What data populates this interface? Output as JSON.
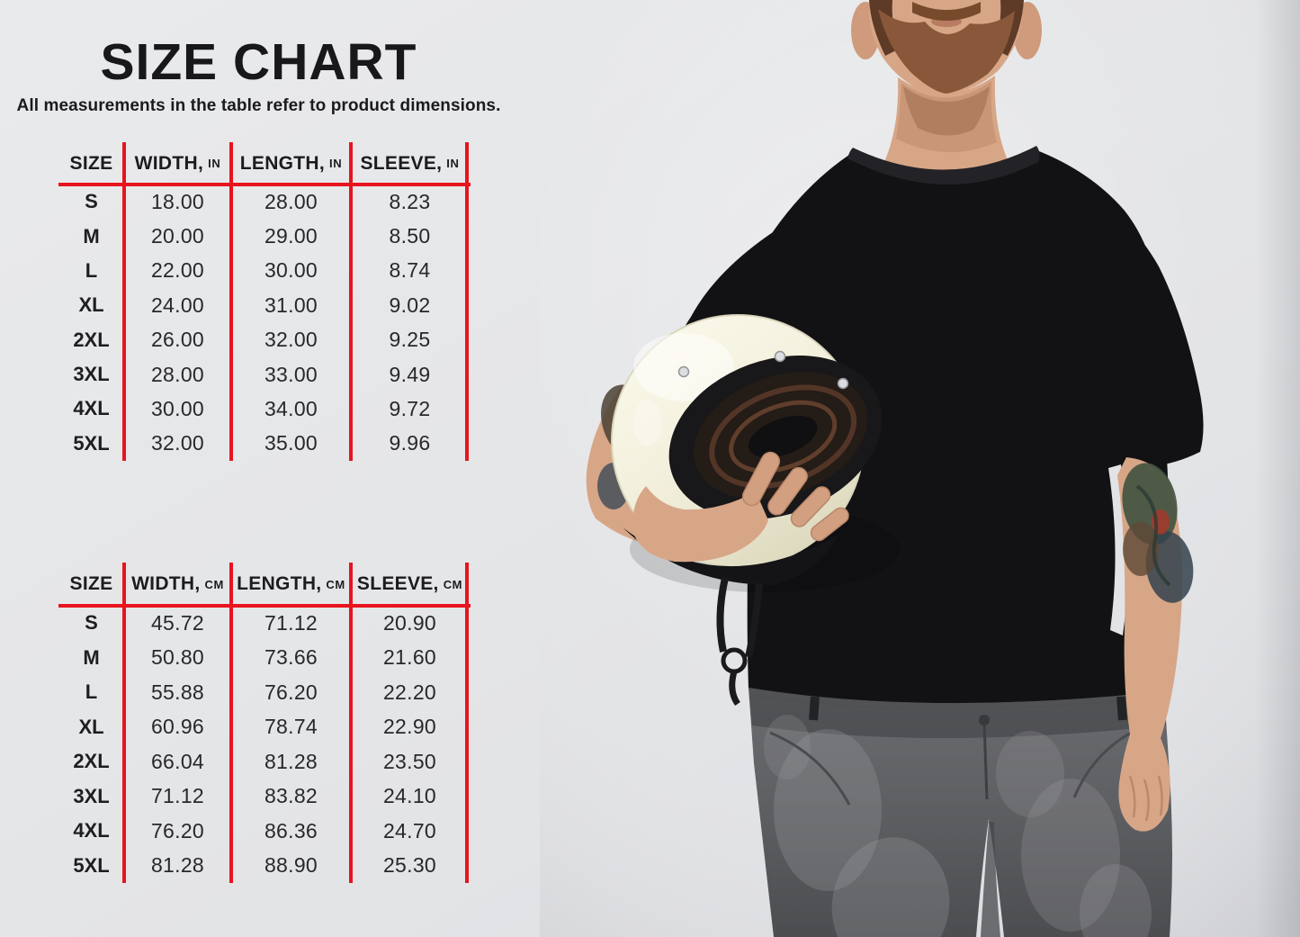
{
  "header": {
    "title": "SIZE CHART",
    "subtitle": "All measurements in the table refer to product dimensions."
  },
  "tables": [
    {
      "name": "inches",
      "columns": [
        {
          "label": "SIZE",
          "unit": ""
        },
        {
          "label": "WIDTH,",
          "unit": "IN"
        },
        {
          "label": "LENGTH,",
          "unit": "IN"
        },
        {
          "label": "SLEEVE,",
          "unit": "IN"
        }
      ],
      "rows": [
        {
          "size": "S",
          "values": [
            "18.00",
            "28.00",
            "8.23"
          ]
        },
        {
          "size": "M",
          "values": [
            "20.00",
            "29.00",
            "8.50"
          ]
        },
        {
          "size": "L",
          "values": [
            "22.00",
            "30.00",
            "8.74"
          ]
        },
        {
          "size": "XL",
          "values": [
            "24.00",
            "31.00",
            "9.02"
          ]
        },
        {
          "size": "2XL",
          "values": [
            "26.00",
            "32.00",
            "9.25"
          ]
        },
        {
          "size": "3XL",
          "values": [
            "28.00",
            "33.00",
            "9.49"
          ]
        },
        {
          "size": "4XL",
          "values": [
            "30.00",
            "34.00",
            "9.72"
          ]
        },
        {
          "size": "5XL",
          "values": [
            "32.00",
            "35.00",
            "9.96"
          ]
        }
      ]
    },
    {
      "name": "centimeters",
      "columns": [
        {
          "label": "SIZE",
          "unit": ""
        },
        {
          "label": "WIDTH,",
          "unit": "CM"
        },
        {
          "label": "LENGTH,",
          "unit": "CM"
        },
        {
          "label": "SLEEVE,",
          "unit": "CM"
        }
      ],
      "rows": [
        {
          "size": "S",
          "values": [
            "45.72",
            "71.12",
            "20.90"
          ]
        },
        {
          "size": "M",
          "values": [
            "50.80",
            "73.66",
            "21.60"
          ]
        },
        {
          "size": "L",
          "values": [
            "55.88",
            "76.20",
            "22.20"
          ]
        },
        {
          "size": "XL",
          "values": [
            "60.96",
            "78.74",
            "22.90"
          ]
        },
        {
          "size": "2XL",
          "values": [
            "66.04",
            "81.28",
            "23.50"
          ]
        },
        {
          "size": "3XL",
          "values": [
            "71.12",
            "83.82",
            "24.10"
          ]
        },
        {
          "size": "4XL",
          "values": [
            "76.20",
            "86.36",
            "24.70"
          ]
        },
        {
          "size": "5XL",
          "values": [
            "81.28",
            "88.90",
            "25.30"
          ]
        }
      ]
    }
  ],
  "colors": {
    "background": "#e4e5e7",
    "accent_red": "#e8141e",
    "text": "#1b1b1d",
    "tshirt_black": "#121214",
    "helmet_cream": "#f2efdc",
    "jeans_grey": "#5f6063",
    "skin": "#d7a687"
  }
}
